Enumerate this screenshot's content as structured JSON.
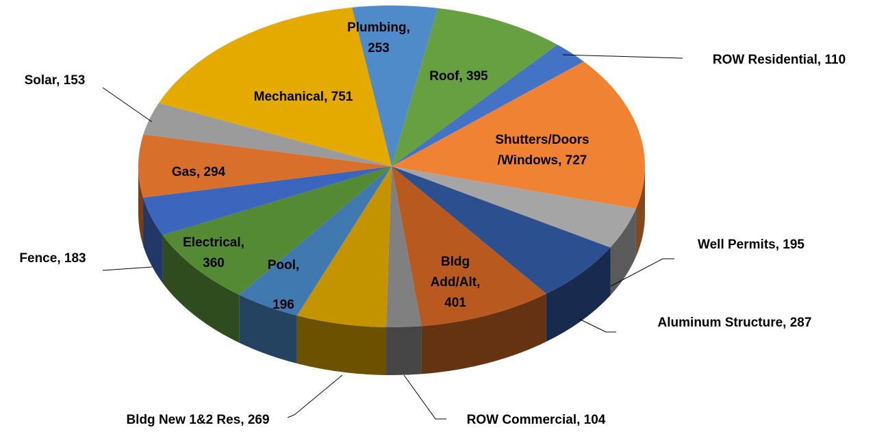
{
  "chart_data": {
    "type": "pie",
    "labels": [
      "Plumbing,\n253",
      "Roof, 395",
      "ROW Residential, 110",
      "Shutters/Doors\n/Windows, 727",
      "Well Permits, 195",
      "Aluminum Structure, 287",
      "Bldg\nAdd/Alt,\n401",
      "ROW Commercial, 104",
      "Bldg New 1&2 Res, 269",
      "Pool,\n196",
      "Electrical,\n360",
      "Fence, 183",
      "Gas, 294",
      "Solar, 153",
      "Mechanical, 751"
    ],
    "values": [
      253,
      395,
      110,
      727,
      195,
      287,
      401,
      104,
      269,
      196,
      360,
      183,
      294,
      153,
      751
    ],
    "colors": [
      "#4f8ac9",
      "#66a040",
      "#4472c4",
      "#f08234",
      "#a5a5a5",
      "#2c4f8f",
      "#b85a20",
      "#808080",
      "#c39300",
      "#3f79b0",
      "#548a34",
      "#3c65bd",
      "#d8702c",
      "#9b9b9b",
      "#e4aa00"
    ]
  }
}
